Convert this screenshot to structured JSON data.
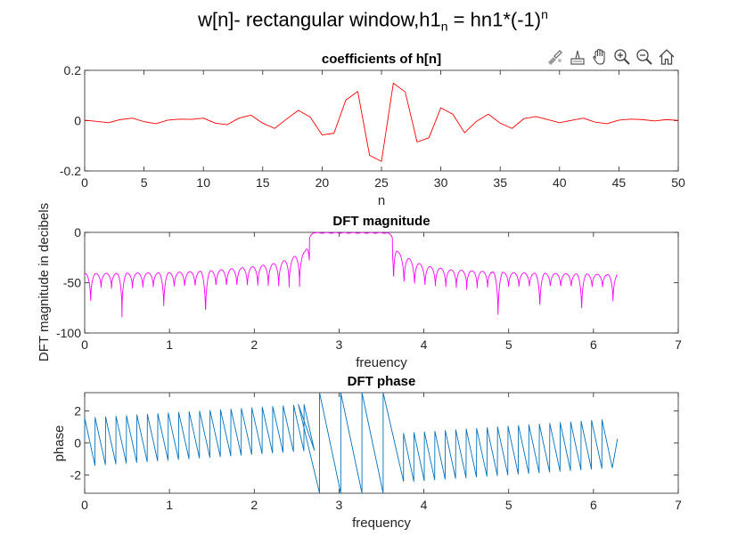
{
  "figure": {
    "suptitle_main": "w[n]-  rectangular  window,h1",
    "suptitle_sub": "n",
    "suptitle_mid": "  =  hn1*(-1)",
    "suptitle_sup": "n"
  },
  "toolbar": {
    "icons": [
      "brush-select-icon",
      "data-tip-icon",
      "pan-hand-icon",
      "zoom-in-icon",
      "zoom-out-icon",
      "home-icon"
    ]
  },
  "colors": {
    "coeff_line": "#ff0000",
    "magnitude_line": "#ff00ff",
    "phase_line": "#0072bd"
  },
  "chart_data": [
    {
      "type": "line",
      "title": "coefficients of h[n]",
      "xlabel": "n",
      "ylabel": "",
      "xlim": [
        0,
        50
      ],
      "ylim": [
        -0.2,
        0.2
      ],
      "xticks": [
        0,
        5,
        10,
        15,
        20,
        25,
        30,
        35,
        40,
        45,
        50
      ],
      "yticks": [
        -0.2,
        0,
        0.2
      ],
      "xtick_labels": [
        "0",
        "5",
        "10",
        "15",
        "20",
        "25",
        "30",
        "35",
        "40",
        "45",
        "50"
      ],
      "ytick_labels": [
        "-0.2",
        "0",
        "0.2"
      ],
      "series": [
        {
          "x": [
            0,
            1,
            2,
            3,
            4,
            5,
            6,
            7,
            8,
            9,
            10,
            11,
            12,
            13,
            14,
            15,
            16,
            17,
            18,
            19,
            20,
            21,
            22,
            23,
            24,
            25,
            26,
            27,
            28,
            29,
            30,
            31,
            32,
            33,
            34,
            35,
            36,
            37,
            38,
            39,
            40,
            41,
            42,
            43,
            44,
            45,
            46,
            47,
            48,
            49,
            50
          ],
          "values": [
            0.002,
            -0.003,
            -0.008,
            0.004,
            0.01,
            -0.004,
            -0.012,
            0.002,
            0.006,
            0.005,
            0.01,
            -0.01,
            -0.016,
            0.01,
            0.022,
            -0.01,
            -0.031,
            0.006,
            0.041,
            0.014,
            -0.057,
            -0.05,
            0.082,
            0.116,
            -0.138,
            -0.162,
            0.149,
            0.114,
            -0.085,
            -0.068,
            0.051,
            0.026,
            -0.048,
            -0.003,
            0.026,
            -0.01,
            -0.031,
            0.008,
            0.016,
            0.004,
            -0.008,
            0.001,
            0.01,
            -0.006,
            -0.012,
            0.002,
            0.006,
            0.004,
            -0.001,
            0.004,
            0.001
          ]
        }
      ]
    },
    {
      "type": "line",
      "title": "DFT magnitude",
      "xlabel": "freuency",
      "ylabel": "DFT magnitude in decibels",
      "xlim": [
        0,
        7
      ],
      "ylim": [
        -100,
        0
      ],
      "xticks": [
        0,
        1,
        2,
        3,
        4,
        5,
        6,
        7
      ],
      "yticks": [
        -100,
        -50,
        0
      ],
      "xtick_labels": [
        "0",
        "1",
        "2",
        "3",
        "4",
        "5",
        "6",
        "7"
      ],
      "ytick_labels": [
        "-100",
        "-50",
        "0"
      ],
      "passband": [
        2.65,
        3.63
      ],
      "passband_level_db": -0.5,
      "x_end": 6.283,
      "lobe_width": 0.1232,
      "deep_nulls": [
        {
          "x": 0.07,
          "db": -75
        },
        {
          "x": 0.43,
          "db": -87
        },
        {
          "x": 0.93,
          "db": -83
        },
        {
          "x": 1.42,
          "db": -93
        },
        {
          "x": 4.86,
          "db": -93
        },
        {
          "x": 5.36,
          "db": -84
        },
        {
          "x": 5.86,
          "db": -87
        },
        {
          "x": 6.21,
          "db": -75
        }
      ],
      "sidelobe_peaks": [
        {
          "x": 0.0,
          "db": -41
        },
        {
          "x": 1.0,
          "db": -40
        },
        {
          "x": 1.5,
          "db": -38
        },
        {
          "x": 2.0,
          "db": -34
        },
        {
          "x": 2.3,
          "db": -30
        },
        {
          "x": 2.5,
          "db": -23
        },
        {
          "x": 2.6,
          "db": -19
        },
        {
          "x": 2.65,
          "db": -5
        },
        {
          "x": 3.63,
          "db": -5
        },
        {
          "x": 3.7,
          "db": -20
        },
        {
          "x": 3.8,
          "db": -25
        },
        {
          "x": 4.0,
          "db": -33
        },
        {
          "x": 4.3,
          "db": -37
        },
        {
          "x": 5.0,
          "db": -40
        },
        {
          "x": 6.283,
          "db": -42
        }
      ]
    },
    {
      "type": "line",
      "title": "DFT phase",
      "xlabel": "frequency",
      "ylabel": "phase",
      "xlim": [
        0,
        7
      ],
      "ylim": [
        -3.14,
        3.14
      ],
      "xticks": [
        0,
        1,
        2,
        3,
        4,
        5,
        6,
        7
      ],
      "yticks": [
        -2,
        0,
        2
      ],
      "xtick_labels": [
        "0",
        "1",
        "2",
        "3",
        "4",
        "5",
        "6",
        "7"
      ],
      "ytick_labels": [
        "-2",
        "0",
        "2"
      ],
      "x_end": 6.283,
      "segments_left": {
        "start_x": 0.0,
        "end_x": 2.65,
        "period": 0.1232,
        "lo_start": -1.4,
        "lo_end": -0.45,
        "hi_start": 1.55,
        "hi_end": 2.4,
        "first_value": 0.15
      },
      "passband_segments": [
        {
          "x0": 2.52,
          "y0": 2.4,
          "x1": 2.77,
          "y1": -3.14
        },
        {
          "x0": 2.77,
          "y0": 3.14,
          "x1": 3.02,
          "y1": -3.14
        },
        {
          "x0": 3.02,
          "y0": 3.14,
          "x1": 3.27,
          "y1": -3.14
        },
        {
          "x0": 3.27,
          "y0": 3.14,
          "x1": 3.52,
          "y1": -3.14
        },
        {
          "x0": 3.52,
          "y0": 3.14,
          "x1": 3.76,
          "y1": -2.4
        }
      ],
      "segments_right": {
        "start_x": 3.76,
        "end_x": 6.283,
        "period": 0.1232,
        "lo_start": -2.4,
        "lo_end": -1.55,
        "hi_start": 0.6,
        "hi_end": 1.45,
        "last_value": 0.25
      }
    }
  ]
}
